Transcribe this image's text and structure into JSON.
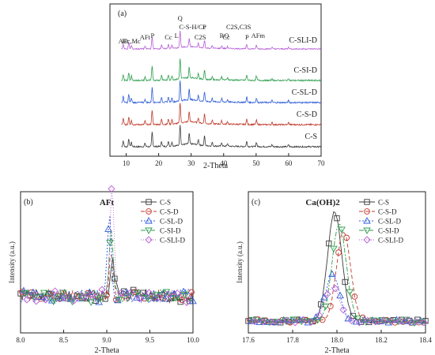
{
  "chart_data": [
    {
      "type": "line",
      "panel": "(a)",
      "xlabel": "2-Theta",
      "ylabel": "",
      "xlim": [
        5,
        70
      ],
      "xticks": [
        10,
        20,
        30,
        40,
        50,
        60,
        70
      ],
      "grid": false,
      "series": [
        {
          "name": "C-S",
          "color": "#3a3a3a",
          "offset": 0
        },
        {
          "name": "C-S-D",
          "color": "#c0392b",
          "offset": 1
        },
        {
          "name": "C-SL-D",
          "color": "#2e5bd8",
          "offset": 2
        },
        {
          "name": "C-SI-D",
          "color": "#2e9e4e",
          "offset": 3
        },
        {
          "name": "C-SLI-D",
          "color": "#b65fd6",
          "offset": 4
        }
      ],
      "peaks": [
        {
          "x": 9.1,
          "h": 0.35
        },
        {
          "x": 10.8,
          "h": 0.45
        },
        {
          "x": 11.6,
          "h": 0.25
        },
        {
          "x": 15.8,
          "h": 0.2
        },
        {
          "x": 18.0,
          "h": 0.85
        },
        {
          "x": 20.9,
          "h": 0.3
        },
        {
          "x": 23.0,
          "h": 0.3
        },
        {
          "x": 24.1,
          "h": 0.25
        },
        {
          "x": 26.6,
          "h": 1.2
        },
        {
          "x": 29.4,
          "h": 0.6
        },
        {
          "x": 32.2,
          "h": 0.3
        },
        {
          "x": 34.1,
          "h": 0.55
        },
        {
          "x": 36.5,
          "h": 0.2
        },
        {
          "x": 39.4,
          "h": 0.2
        },
        {
          "x": 41.2,
          "h": 0.15
        },
        {
          "x": 47.1,
          "h": 0.3
        },
        {
          "x": 50.1,
          "h": 0.25
        },
        {
          "x": 54.9,
          "h": 0.12
        },
        {
          "x": 60.0,
          "h": 0.12
        }
      ],
      "annotations": [
        {
          "text": "AFt",
          "x": 9.2,
          "level": 4
        },
        {
          "text": "Hc,Mc",
          "x": 11.6,
          "level": 4
        },
        {
          "text": "AFt",
          "x": 15.8,
          "level": 3
        },
        {
          "text": "P",
          "x": 18.1,
          "level": 2
        },
        {
          "text": "Cc",
          "x": 23.0,
          "level": 3
        },
        {
          "text": "L",
          "x": 25.5,
          "level": 2
        },
        {
          "text": "Q",
          "x": 26.6,
          "level": 0
        },
        {
          "text": "C-S-H/Cc",
          "x": 30.4,
          "level": 1
        },
        {
          "text": "P",
          "x": 34.1,
          "level": 1
        },
        {
          "text": "C2S",
          "x": 32.8,
          "level": 3
        },
        {
          "text": "RO",
          "x": 40.2,
          "level": 2
        },
        {
          "text": "Cc",
          "x": 40.8,
          "level": 3
        },
        {
          "text": "C2S,C3S",
          "x": 44.6,
          "level": 1
        },
        {
          "text": "P",
          "x": 47.2,
          "level": 3
        },
        {
          "text": "AFm",
          "x": 50.6,
          "level": 2
        }
      ],
      "grey_box_label": "(a)"
    },
    {
      "type": "line",
      "panel": "(b)",
      "title": "AFt",
      "xlabel": "2-Theta",
      "ylabel": "Intensity (a.u.)",
      "xlim": [
        8.0,
        10.0
      ],
      "xticks": [
        8.0,
        8.5,
        9.0,
        9.5,
        10.0
      ],
      "grid": false,
      "legend": "top-right",
      "series": [
        {
          "name": "C-S",
          "color": "#3a3a3a",
          "marker": "square",
          "dash": "none",
          "peak_x": 9.07,
          "peak_h": 0.3
        },
        {
          "name": "C-S-D",
          "color": "#c0392b",
          "marker": "circle",
          "dash": "5,3",
          "peak_x": 9.05,
          "peak_h": 0.35
        },
        {
          "name": "C-SL-D",
          "color": "#2e5bd8",
          "marker": "triangle-up",
          "dash": "2,2",
          "peak_x": 9.03,
          "peak_h": 0.7
        },
        {
          "name": "C-SI-D",
          "color": "#2e9e4e",
          "marker": "triangle-down",
          "dash": "6,2,2,2",
          "peak_x": 9.05,
          "peak_h": 0.55
        },
        {
          "name": "C-SLI-D",
          "color": "#b65fd6",
          "marker": "diamond",
          "dash": "1,2",
          "peak_x": 9.06,
          "peak_h": 0.95
        }
      ]
    },
    {
      "type": "line",
      "panel": "(c)",
      "title": "Ca(OH)2",
      "xlabel": "2-Theta",
      "ylabel": "Intensity (a.u.)",
      "xlim": [
        17.6,
        18.4
      ],
      "xticks": [
        17.6,
        17.8,
        18.0,
        18.2,
        18.4
      ],
      "grid": false,
      "legend": "top-right",
      "series": [
        {
          "name": "C-S",
          "color": "#3a3a3a",
          "marker": "square",
          "dash": "none",
          "peak_x": 17.99,
          "peak_h": 1.0
        },
        {
          "name": "C-S-D",
          "color": "#c0392b",
          "marker": "circle",
          "dash": "5,3",
          "peak_x": 18.03,
          "peak_h": 0.82
        },
        {
          "name": "C-SL-D",
          "color": "#2e5bd8",
          "marker": "triangle-up",
          "dash": "2,2",
          "peak_x": 17.98,
          "peak_h": 0.42
        },
        {
          "name": "C-SI-D",
          "color": "#2e9e4e",
          "marker": "triangle-down",
          "dash": "6,2,2,2",
          "peak_x": 18.01,
          "peak_h": 0.88
        },
        {
          "name": "C-SLI-D",
          "color": "#b65fd6",
          "marker": "diamond",
          "dash": "1,2",
          "peak_x": 17.98,
          "peak_h": 0.32
        }
      ]
    }
  ]
}
